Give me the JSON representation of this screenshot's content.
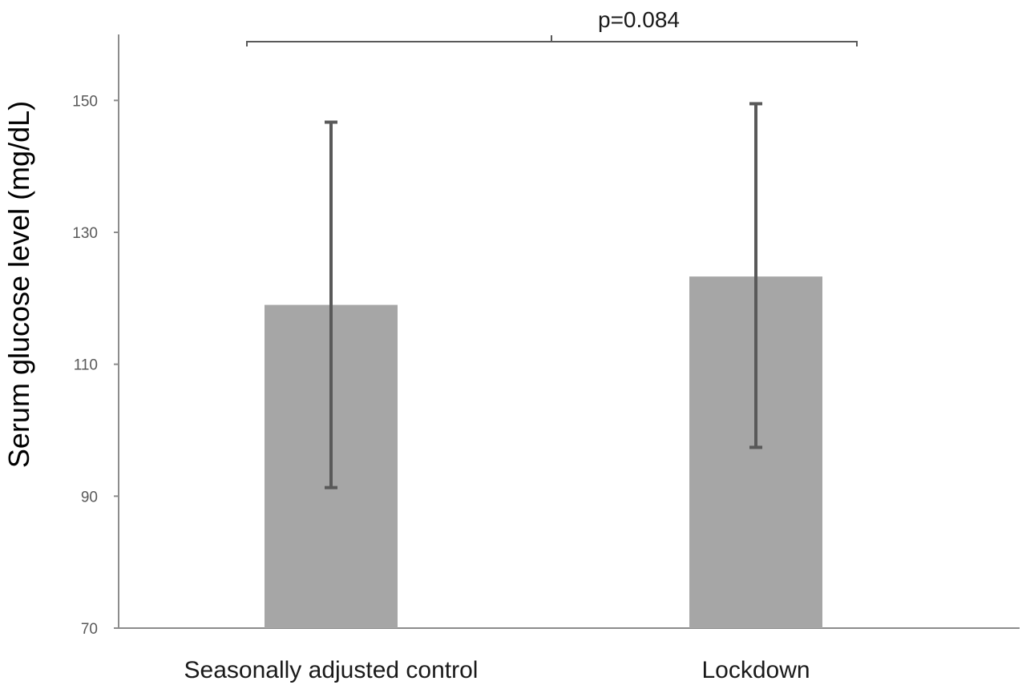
{
  "chart_data": {
    "type": "bar",
    "categories": [
      "Seasonally adjusted control",
      "Lockdown"
    ],
    "values": [
      119.0,
      123.3
    ],
    "error_low": [
      91.3,
      97.4
    ],
    "error_high": [
      146.7,
      149.5
    ],
    "ylabel": "Serum glucose level (mg/dL)",
    "xlabel": "",
    "ylim": [
      70,
      160
    ],
    "yticks": [
      70,
      90,
      110,
      130,
      150
    ],
    "annotation": "p=0.084",
    "grid": false,
    "bar_color": "#a6a6a6",
    "error_bar_color": "#595959"
  }
}
